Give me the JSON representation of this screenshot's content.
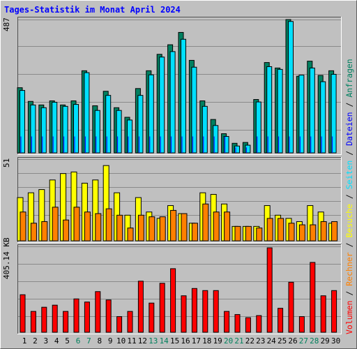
{
  "title": "Tages-Statistik im Monat April 2024",
  "colors": {
    "background": "#c0c0c0",
    "plot_background": "#c0c0c0",
    "grid": "#8a8a8a",
    "anfragen": "#008060",
    "dateien": "#0000ff",
    "seiten": "#00e0ff",
    "besuche": "#ffff00",
    "rechner": "#ff8000",
    "volumen": "#ff0000",
    "weekend_label": "#00805c",
    "text": "#000000",
    "title": "#0000ff"
  },
  "legend": {
    "volumen": "Volumen",
    "rechner": "Rechner",
    "besuche": "Besuche",
    "seiten": "Seiten",
    "dateien": "Dateien",
    "anfragen": "Anfragen",
    "sep": " / "
  },
  "chart_data": [
    {
      "type": "bar",
      "panel": "top",
      "ymax_label": "487",
      "ylim": [
        0,
        487
      ],
      "categories": [
        "1",
        "2",
        "3",
        "4",
        "5",
        "6",
        "7",
        "8",
        "9",
        "10",
        "11",
        "12",
        "13",
        "14",
        "15",
        "16",
        "17",
        "18",
        "19",
        "20",
        "21",
        "22",
        "23",
        "24",
        "25",
        "26",
        "27",
        "28",
        "29",
        "30"
      ],
      "weekend_days": [
        "6",
        "7",
        "13",
        "14",
        "20",
        "21",
        "27",
        "28"
      ],
      "series": [
        {
          "name": "Anfragen",
          "values": [
            238,
            188,
            175,
            190,
            175,
            190,
            300,
            172,
            225,
            165,
            130,
            235,
            300,
            360,
            395,
            440,
            338,
            190,
            122,
            70,
            35,
            38,
            195,
            330,
            310,
            487,
            280,
            335,
            283,
            300
          ]
        },
        {
          "name": "Seiten",
          "values": [
            228,
            175,
            165,
            185,
            170,
            177,
            293,
            155,
            210,
            155,
            120,
            210,
            285,
            350,
            370,
            415,
            313,
            170,
            100,
            60,
            25,
            28,
            186,
            315,
            305,
            480,
            284,
            310,
            260,
            287
          ]
        },
        {
          "name": "Dateien",
          "values": [
            60,
            60,
            60,
            60,
            60,
            60,
            60,
            60,
            60,
            60,
            60,
            60,
            60,
            60,
            60,
            60,
            60,
            60,
            60,
            60,
            20,
            20,
            60,
            60,
            60,
            60,
            60,
            60,
            60,
            60
          ]
        }
      ]
    },
    {
      "type": "bar",
      "panel": "middle",
      "ymax_label": "51",
      "ylim": [
        0,
        51
      ],
      "categories": [
        "1",
        "2",
        "3",
        "4",
        "5",
        "6",
        "7",
        "8",
        "9",
        "10",
        "11",
        "12",
        "13",
        "14",
        "15",
        "16",
        "17",
        "18",
        "19",
        "20",
        "21",
        "22",
        "23",
        "24",
        "25",
        "26",
        "27",
        "28",
        "29",
        "30"
      ],
      "series": [
        {
          "name": "Besuche",
          "values": [
            27,
            30,
            32,
            38,
            42,
            43,
            36,
            38,
            47,
            30,
            16,
            27,
            18,
            14,
            22,
            17,
            11,
            30,
            29,
            23,
            9,
            9,
            9,
            22,
            16,
            14,
            12,
            22,
            18,
            11
          ]
        },
        {
          "name": "Rechner",
          "values": [
            18,
            11,
            12,
            21,
            13,
            21,
            18,
            17,
            20,
            16,
            8,
            16,
            15,
            15,
            19,
            17,
            11,
            23,
            18,
            18,
            9,
            9,
            8,
            14,
            14,
            11,
            10,
            10,
            12,
            12
          ]
        }
      ]
    },
    {
      "type": "bar",
      "panel": "bottom",
      "ymax_label": "405.14 KB",
      "ylim": [
        0,
        405.14
      ],
      "categories": [
        "1",
        "2",
        "3",
        "4",
        "5",
        "6",
        "7",
        "8",
        "9",
        "10",
        "11",
        "12",
        "13",
        "14",
        "15",
        "16",
        "17",
        "18",
        "19",
        "20",
        "21",
        "22",
        "23",
        "24",
        "25",
        "26",
        "27",
        "28",
        "29",
        "30"
      ],
      "series": [
        {
          "name": "Volumen",
          "values": [
            180,
            100,
            120,
            130,
            100,
            160,
            145,
            195,
            155,
            75,
            100,
            245,
            140,
            235,
            305,
            175,
            210,
            200,
            200,
            100,
            85,
            70,
            80,
            405,
            115,
            240,
            75,
            335,
            175,
            200
          ]
        }
      ]
    }
  ]
}
